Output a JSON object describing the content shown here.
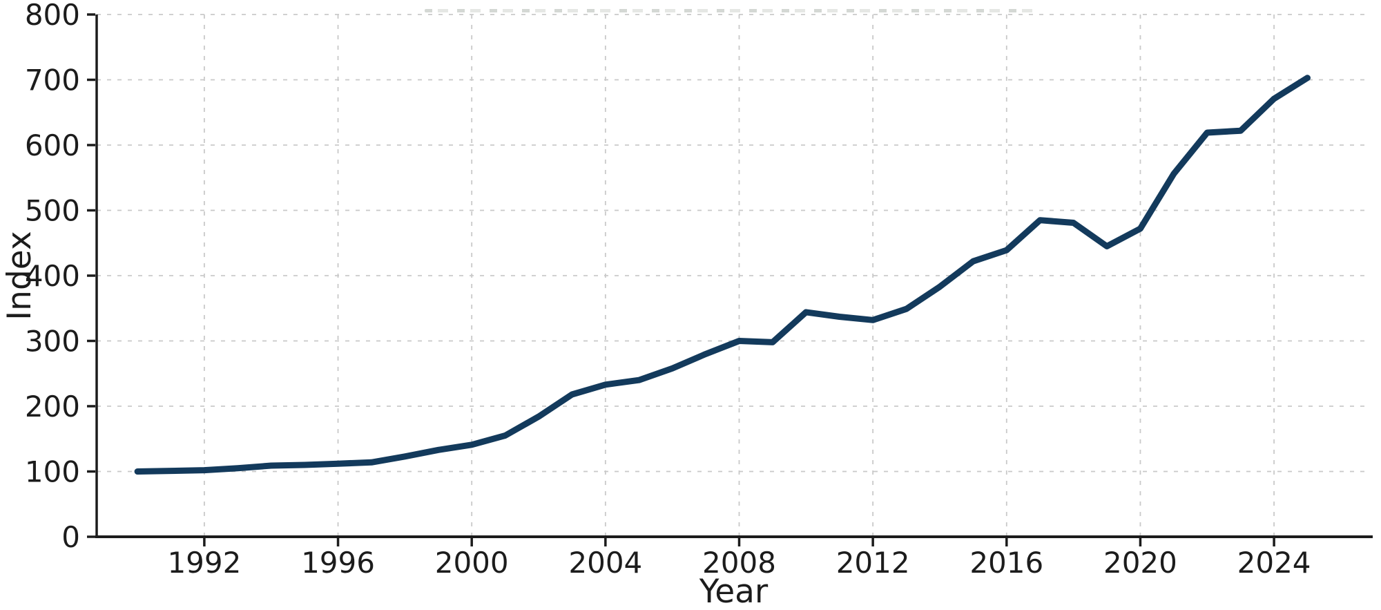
{
  "chart_data": {
    "type": "line",
    "xlabel": "Year",
    "ylabel": "Index",
    "x": [
      1990,
      1991,
      1992,
      1993,
      1994,
      1995,
      1996,
      1997,
      1998,
      1999,
      2000,
      2001,
      2002,
      2003,
      2004,
      2005,
      2006,
      2007,
      2008,
      2009,
      2010,
      2011,
      2012,
      2013,
      2014,
      2015,
      2016,
      2017,
      2018,
      2019,
      2020,
      2021,
      2022,
      2023,
      2024,
      2025
    ],
    "series": [
      {
        "name": "Index",
        "values": [
          100,
          101,
          102,
          105,
          109,
          110,
          112,
          114,
          123,
          133,
          141,
          155,
          184,
          218,
          233,
          240,
          258,
          280,
          300,
          298,
          344,
          337,
          332,
          349,
          383,
          422,
          439,
          485,
          481,
          445,
          472,
          556,
          619,
          622,
          671,
          703
        ]
      }
    ],
    "xlim": [
      1988.78,
      2026.89
    ],
    "ylim": [
      0,
      800
    ],
    "xticks": [
      1992,
      1996,
      2000,
      2004,
      2008,
      2012,
      2016,
      2020,
      2024
    ],
    "yticks": [
      0,
      100,
      200,
      300,
      400,
      500,
      600,
      700,
      800
    ],
    "grid": true,
    "grid_style": "dashed",
    "legend": "none",
    "line_color": "#133a5c",
    "grid_color": "#c9c9c9",
    "axis_color": "#1c1c1c",
    "text_color": "#1c1c1c",
    "background_color": "#ffffff"
  }
}
